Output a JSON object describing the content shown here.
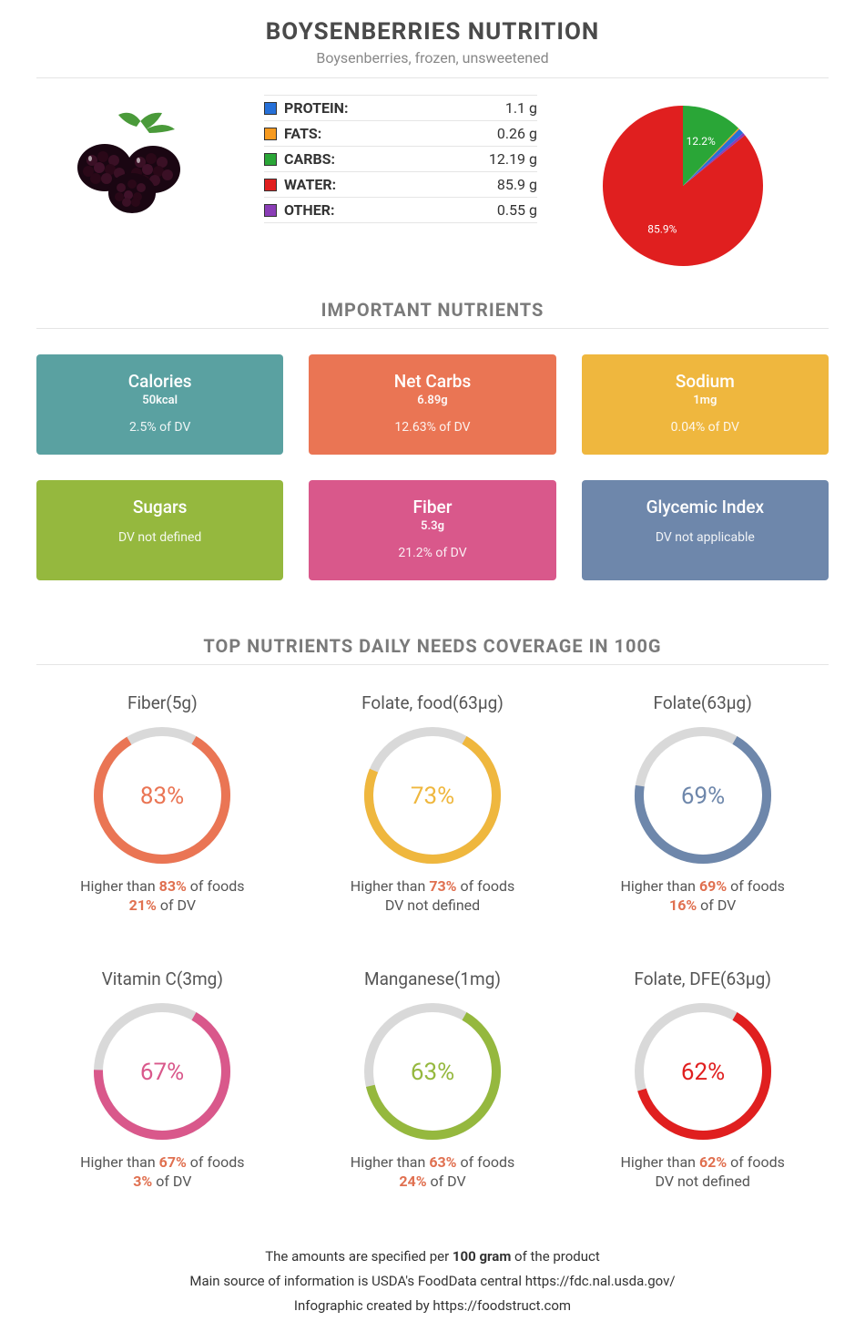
{
  "header": {
    "title": "BOYSENBERRIES NUTRITION",
    "subtitle": "Boysenberries, frozen, unsweetened"
  },
  "macros": {
    "rows": [
      {
        "label": "PROTEIN:",
        "value": "1.1 g",
        "color": "#2670d8"
      },
      {
        "label": "FATS:",
        "value": "0.26 g",
        "color": "#f79a1f"
      },
      {
        "label": "CARBS:",
        "value": "12.19 g",
        "color": "#2aa637"
      },
      {
        "label": "WATER:",
        "value": "85.9 g",
        "color": "#e01f1f"
      },
      {
        "label": "OTHER:",
        "value": "0.55 g",
        "color": "#8a3db6"
      }
    ]
  },
  "pie": {
    "type": "pie",
    "slices": [
      {
        "label": "85.9%",
        "value": 85.9,
        "color": "#e01f1f",
        "show_label": true,
        "label_color": "#ffffff"
      },
      {
        "label": "",
        "value": 0.55,
        "color": "#8a3db6",
        "show_label": false
      },
      {
        "label": "",
        "value": 1.1,
        "color": "#2670d8",
        "show_label": false
      },
      {
        "label": "",
        "value": 0.26,
        "color": "#f79a1f",
        "show_label": false
      },
      {
        "label": "12.2%",
        "value": 12.19,
        "color": "#2aa637",
        "show_label": true,
        "label_color": "#ffffff"
      }
    ],
    "label_fontsize": 12
  },
  "nutrients": {
    "title": "IMPORTANT NUTRIENTS",
    "cards": [
      {
        "title": "Calories",
        "value": "50kcal",
        "dv": "2.5% of DV",
        "bg": "#5aa1a1"
      },
      {
        "title": "Net Carbs",
        "value": "6.89g",
        "dv": "12.63% of DV",
        "bg": "#ea7554"
      },
      {
        "title": "Sodium",
        "value": "1mg",
        "dv": "0.04% of DV",
        "bg": "#efb73e"
      },
      {
        "title": "Sugars",
        "value": "",
        "dv": "DV not defined",
        "bg": "#95b83e"
      },
      {
        "title": "Fiber",
        "value": "5.3g",
        "dv": "21.2% of DV",
        "bg": "#d9588b"
      },
      {
        "title": "Glycemic Index",
        "value": "",
        "dv": "DV not applicable",
        "bg": "#6e87ab"
      }
    ]
  },
  "coverage": {
    "title": "TOP NUTRIENTS DAILY NEEDS COVERAGE IN 100G",
    "ring_thickness": 10,
    "ring_diameter": 150,
    "track_color": "#d9d9d9",
    "pct_fontsize": 26,
    "items": [
      {
        "label": "Fiber(5g)",
        "pct": 83,
        "color": "#ea7554",
        "line1_pct": "83%",
        "line2": "21% of DV",
        "line2_pct": "21%"
      },
      {
        "label": "Folate, food(63µg)",
        "pct": 73,
        "color": "#efb73e",
        "line1_pct": "73%",
        "line2": "DV not defined",
        "line2_pct": ""
      },
      {
        "label": "Folate(63µg)",
        "pct": 69,
        "color": "#6e87ab",
        "line1_pct": "69%",
        "line2": "16% of DV",
        "line2_pct": "16%"
      },
      {
        "label": "Vitamin C(3mg)",
        "pct": 67,
        "color": "#d9588b",
        "line1_pct": "67%",
        "line2": "3% of DV",
        "line2_pct": "3%"
      },
      {
        "label": "Manganese(1mg)",
        "pct": 63,
        "color": "#95b83e",
        "line1_pct": "63%",
        "line2": "24% of DV",
        "line2_pct": "24%"
      },
      {
        "label": "Folate, DFE(63µg)",
        "pct": 62,
        "color": "#e01f1f",
        "line1_pct": "62%",
        "line2": "DV not defined",
        "line2_pct": ""
      }
    ]
  },
  "footer": {
    "line1_pre": "The amounts are specified per ",
    "line1_strong": "100 gram",
    "line1_post": " of the product",
    "line2": "Main source of information is USDA's FoodData central https://fdc.nal.usda.gov/",
    "line3": "Infographic created by https://foodstruct.com"
  }
}
